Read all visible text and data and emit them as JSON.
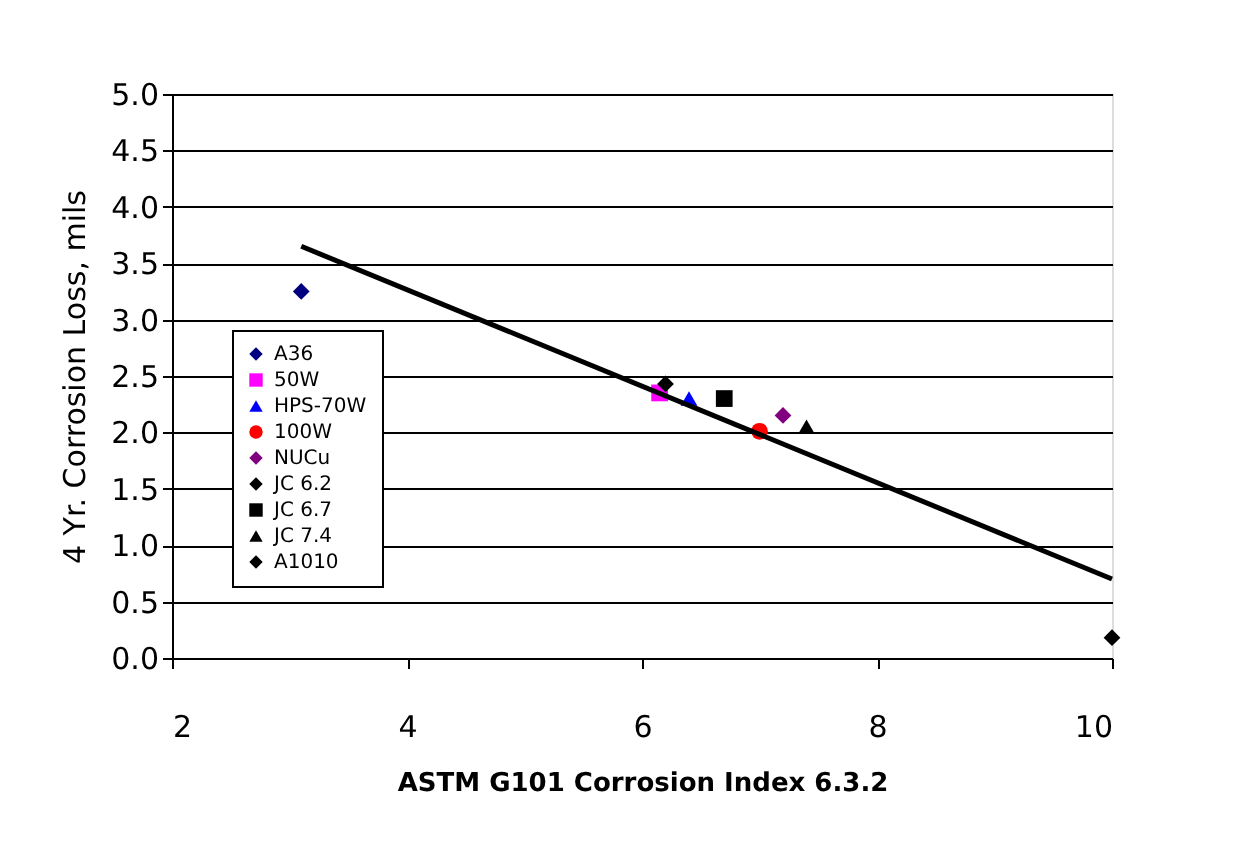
{
  "chart_data": {
    "type": "scatter",
    "xlabel": "ASTM G101 Corrosion Index 6.3.2",
    "ylabel": "4 Yr. Corrosion Loss, mils",
    "xlim": [
      2,
      10
    ],
    "xticks": [
      2,
      4,
      6,
      8,
      10
    ],
    "ylim": [
      0,
      5
    ],
    "yticks": [
      {
        "value": 0,
        "label": "0.0"
      },
      {
        "value": 0.5,
        "label": "0.5"
      },
      {
        "value": 1,
        "label": "1.0"
      },
      {
        "value": 1.5,
        "label": "1.5"
      },
      {
        "value": 2,
        "label": "2.0"
      },
      {
        "value": 2.5,
        "label": "2.5"
      },
      {
        "value": 3,
        "label": "3.0"
      },
      {
        "value": 3.5,
        "label": "3.5"
      },
      {
        "value": 4,
        "label": "4.0"
      },
      {
        "value": 4.5,
        "label": "4.5"
      },
      {
        "value": 5,
        "label": "5.0"
      }
    ],
    "grid": "y",
    "legend": "left",
    "series": [
      {
        "name": "A36",
        "color": "#000080",
        "marker": "diamond",
        "x": [
          3.1
        ],
        "values": [
          3.25
        ]
      },
      {
        "name": "50W",
        "color": "#ff00ff",
        "marker": "square",
        "x": [
          6.15
        ],
        "values": [
          2.35
        ]
      },
      {
        "name": "HPS-70W",
        "color": "#0000ff",
        "marker": "triangle",
        "x": [
          6.4
        ],
        "values": [
          2.3
        ]
      },
      {
        "name": "100W",
        "color": "#ff0000",
        "marker": "circle",
        "x": [
          7.0
        ],
        "values": [
          2.01
        ]
      },
      {
        "name": "NUCu",
        "color": "#800080",
        "marker": "diamond",
        "x": [
          7.2
        ],
        "values": [
          2.15
        ]
      },
      {
        "name": "JC 6.2",
        "color": "#000000",
        "marker": "diamond",
        "x": [
          6.2
        ],
        "values": [
          2.43
        ]
      },
      {
        "name": "JC 6.7",
        "color": "#000000",
        "marker": "square",
        "x": [
          6.7
        ],
        "values": [
          2.3
        ]
      },
      {
        "name": "JC 7.4",
        "color": "#000000",
        "marker": "triangle",
        "x": [
          7.4
        ],
        "values": [
          2.05
        ]
      },
      {
        "name": "A1010",
        "color": "#000000",
        "marker": "diamond",
        "x": [
          10
        ],
        "values": [
          0.18
        ]
      },
      {
        "type": "line",
        "color": "#000000",
        "marker": "none",
        "line_style": "solid",
        "x": [
          3.1,
          10
        ],
        "values": [
          3.65,
          0.7
        ]
      }
    ]
  }
}
